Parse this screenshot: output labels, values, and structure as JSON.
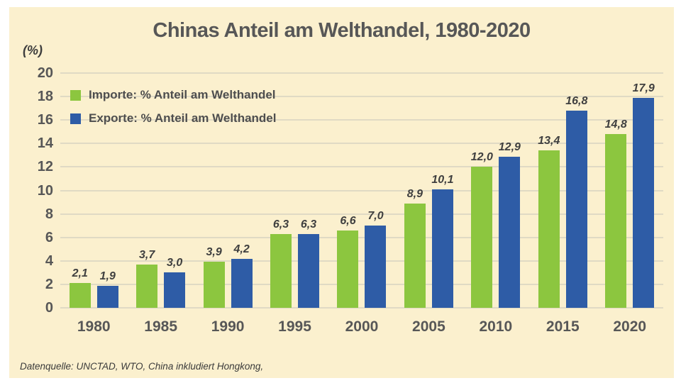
{
  "title": "Chinas Anteil am Welthandel, 1980-2020",
  "y_axis_unit": "(%)",
  "source_note": "Datenquelle: UNCTAD, WTO, China inkludiert Hongkong,",
  "legend": {
    "items": [
      {
        "label": "Importe: % Anteil am Welthandel",
        "color": "#8CC63F"
      },
      {
        "label": "Exporte: % Anteil am Welthandel",
        "color": "#2E5CA6"
      }
    ]
  },
  "colors": {
    "panel_bg": "#FBF0CE",
    "grid": "#E0DAC4",
    "text": "#575757",
    "import_green": "#8CC63F",
    "export_blue": "#2E5CA6"
  },
  "chart_data": {
    "type": "bar",
    "title": "Chinas Anteil am Welthandel, 1980-2020",
    "xlabel": "",
    "ylabel": "(%)",
    "categories": [
      "1980",
      "1985",
      "1990",
      "1995",
      "2000",
      "2005",
      "2010",
      "2015",
      "2020"
    ],
    "series": [
      {
        "name": "Importe: % Anteil am Welthandel",
        "short": "import",
        "color": "#8CC63F",
        "values": [
          2.1,
          3.7,
          3.9,
          6.3,
          6.6,
          8.9,
          12.0,
          13.4,
          14.8
        ],
        "labels": [
          "2,1",
          "3,7",
          "3,9",
          "6,3",
          "6,6",
          "8,9",
          "12,0",
          "13,4",
          "14,8"
        ]
      },
      {
        "name": "Exporte: % Anteil am Welthandel",
        "short": "export",
        "color": "#2E5CA6",
        "values": [
          1.9,
          3.0,
          4.2,
          6.3,
          7.0,
          10.1,
          12.9,
          16.8,
          17.9
        ],
        "labels": [
          "1,9",
          "3,0",
          "4,2",
          "6,3",
          "7,0",
          "10,1",
          "12,9",
          "16,8",
          "17,9"
        ]
      }
    ],
    "ylim": [
      0,
      20
    ],
    "y_ticks": [
      0,
      2,
      4,
      6,
      8,
      10,
      12,
      14,
      16,
      18,
      20
    ],
    "grid": true,
    "legend_position": "top-left-inside"
  }
}
